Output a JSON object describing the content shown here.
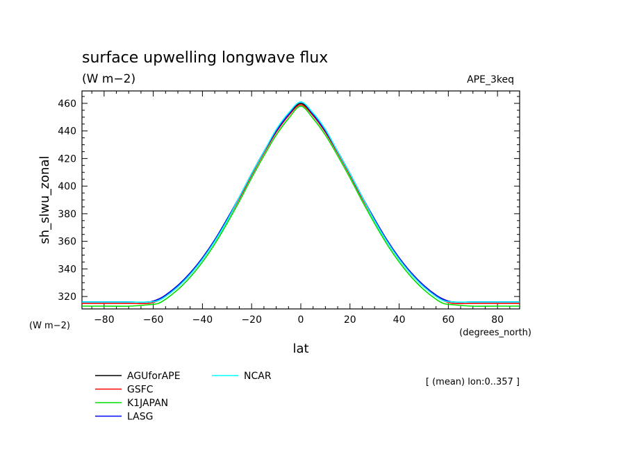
{
  "chart_data": {
    "type": "line",
    "title": "surface upwelling longwave flux",
    "subtitle": "(W m−2)",
    "experiment": "APE_3keq",
    "xlabel": "lat",
    "xunit": "(degrees_north)",
    "ylabel": "sh_slwu_zonal",
    "yunit": "(W m−2)",
    "note": "[ (mean) lon:0..357 ]",
    "xlim": [
      -89,
      89
    ],
    "ylim": [
      311,
      469
    ],
    "xticks": [
      -80,
      -60,
      -40,
      -20,
      0,
      20,
      40,
      60,
      80
    ],
    "xtick_labels": [
      "−80",
      "−60",
      "−40",
      "−20",
      "0",
      "20",
      "40",
      "60",
      "80"
    ],
    "yticks": [
      320,
      340,
      360,
      380,
      400,
      420,
      440,
      460
    ],
    "ytick_labels": [
      "320",
      "340",
      "360",
      "380",
      "400",
      "420",
      "440",
      "460"
    ],
    "grid": false,
    "legend_position": "bottom",
    "x": [
      -89,
      -80,
      -70,
      -62,
      -58,
      -55,
      -50,
      -45,
      -40,
      -35,
      -30,
      -25,
      -20,
      -15,
      -10,
      -5,
      0,
      5,
      10,
      15,
      20,
      25,
      30,
      35,
      40,
      45,
      50,
      55,
      58,
      62,
      70,
      80,
      89
    ],
    "series": [
      {
        "name": "AGUforAPE",
        "color": "#000000",
        "values": [
          316,
          316,
          316,
          316,
          318,
          321,
          328,
          337,
          348,
          361,
          376,
          392,
          409,
          425,
          440,
          452,
          460,
          452,
          440,
          425,
          409,
          392,
          376,
          361,
          348,
          337,
          328,
          321,
          318,
          316,
          316,
          316,
          316
        ]
      },
      {
        "name": "GSFC",
        "color": "#ff0000",
        "values": [
          315,
          315,
          315,
          315,
          317,
          320,
          327,
          336,
          347,
          360,
          375,
          391,
          408,
          424,
          439,
          451,
          459,
          451,
          439,
          424,
          408,
          391,
          375,
          360,
          347,
          336,
          327,
          320,
          317,
          315,
          315,
          315,
          315
        ]
      },
      {
        "name": "K1JAPAN",
        "color": "#00dd00",
        "values": [
          313,
          313,
          313,
          314,
          315,
          318,
          325,
          334,
          345,
          358,
          373,
          389,
          406,
          422,
          437,
          449,
          458,
          449,
          437,
          422,
          406,
          389,
          373,
          358,
          345,
          334,
          325,
          318,
          315,
          314,
          313,
          313,
          313
        ]
      },
      {
        "name": "LASG",
        "color": "#0000ff",
        "values": [
          316,
          316,
          316,
          316,
          318,
          321,
          328,
          337,
          348,
          361,
          376,
          392,
          409,
          425,
          440,
          452,
          461,
          452,
          440,
          425,
          409,
          392,
          376,
          361,
          348,
          337,
          328,
          321,
          318,
          316,
          316,
          316,
          316
        ]
      },
      {
        "name": "NCAR",
        "color": "#00ffff",
        "values": [
          316,
          316,
          316,
          316,
          317,
          320,
          327,
          336,
          347,
          360,
          375,
          392,
          409,
          425,
          441,
          453,
          461,
          453,
          441,
          425,
          409,
          392,
          375,
          360,
          347,
          336,
          327,
          320,
          317,
          316,
          316,
          316,
          316
        ]
      }
    ]
  }
}
